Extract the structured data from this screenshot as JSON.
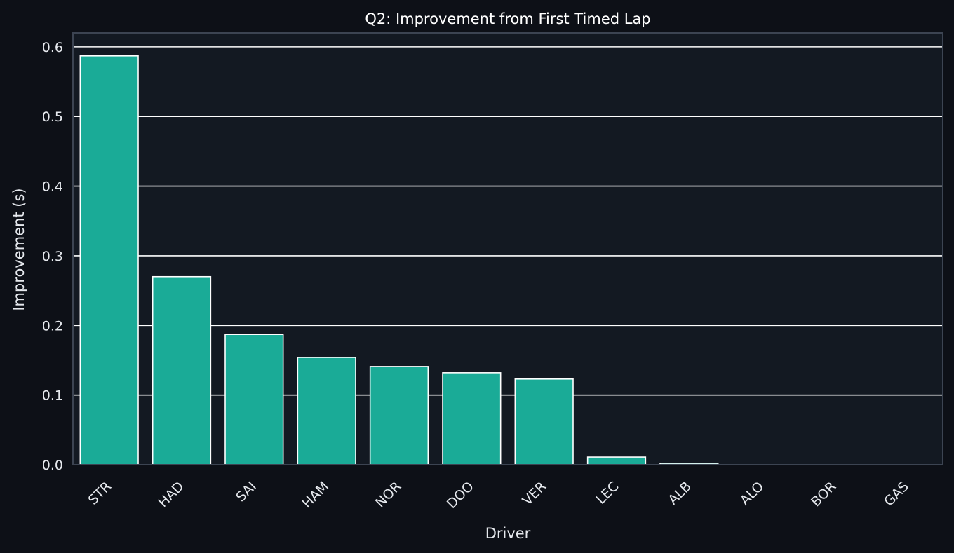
{
  "chart_data": {
    "type": "bar",
    "title": "Q2: Improvement from First Timed Lap",
    "xlabel": "Driver",
    "ylabel": "Improvement (s)",
    "ylim": [
      0,
      0.62
    ],
    "yticks": [
      "0.0",
      "0.1",
      "0.2",
      "0.3",
      "0.4",
      "0.5",
      "0.6"
    ],
    "categories": [
      "STR",
      "HAD",
      "SAI",
      "HAM",
      "NOR",
      "DOO",
      "VER",
      "LEC",
      "ALB",
      "ALO",
      "BOR",
      "GAS"
    ],
    "values": [
      0.587,
      0.27,
      0.187,
      0.154,
      0.141,
      0.132,
      0.123,
      0.011,
      0.002,
      0.0,
      0.0,
      0.0
    ],
    "grid": "horizontal",
    "legend": "none",
    "colors": {
      "bar": "#1aab97",
      "bar_edge": "#ffffff",
      "plot_bg": "#131922",
      "page_bg": "#0d1017",
      "grid": "#ffffff",
      "frame": "#3c4452"
    }
  }
}
